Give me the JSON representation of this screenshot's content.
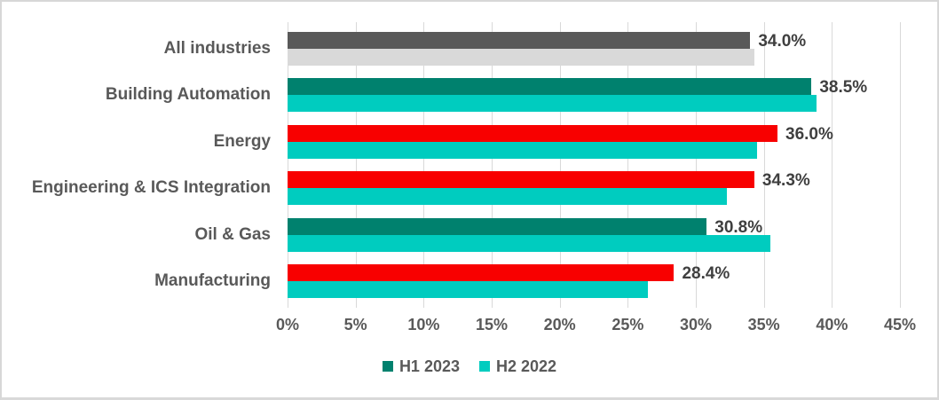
{
  "chart_data": {
    "type": "bar",
    "orientation": "horizontal",
    "title": "",
    "categories": [
      "All industries",
      "Building Automation",
      "Energy",
      "Engineering & ICS Integration",
      "Oil & Gas",
      "Manufacturing"
    ],
    "series": [
      {
        "name": "H1 2023",
        "values": [
          34.0,
          38.5,
          36.0,
          34.3,
          30.8,
          28.4
        ],
        "data_labels": [
          "34.0%",
          "38.5%",
          "36.0%",
          "34.3%",
          "30.8%",
          "28.4%"
        ],
        "bar_colors": [
          "#595959",
          "#00816E",
          "#F80000",
          "#F80000",
          "#00816E",
          "#F80000"
        ]
      },
      {
        "name": "H2 2022",
        "values": [
          34.3,
          38.9,
          34.5,
          32.3,
          35.5,
          26.5
        ],
        "data_labels": [
          "",
          "",
          "",
          "",
          "",
          ""
        ],
        "bar_colors": [
          "#D9D9D9",
          "#00CCBF",
          "#00CCBF",
          "#00CCBF",
          "#00CCBF",
          "#00CCBF"
        ]
      }
    ],
    "xlim": [
      0,
      45
    ],
    "x_tick_values": [
      0,
      5,
      10,
      15,
      20,
      25,
      30,
      35,
      40,
      45
    ],
    "x_tick_labels": [
      "0%",
      "5%",
      "10%",
      "15%",
      "20%",
      "25%",
      "30%",
      "35%",
      "40%",
      "45%"
    ],
    "grid": true,
    "legend_position": "bottom",
    "legend": [
      {
        "label": "H1 2023",
        "color": "#00816E"
      },
      {
        "label": "H2 2022",
        "color": "#00CCBF"
      }
    ]
  },
  "colors": {
    "grid": "#D9D9D9",
    "axis_text": "#595959",
    "data_label_text": "#3F3F3F",
    "category_text": "#595959",
    "background": "#FFFFFF",
    "border": "#D7D7D7"
  }
}
